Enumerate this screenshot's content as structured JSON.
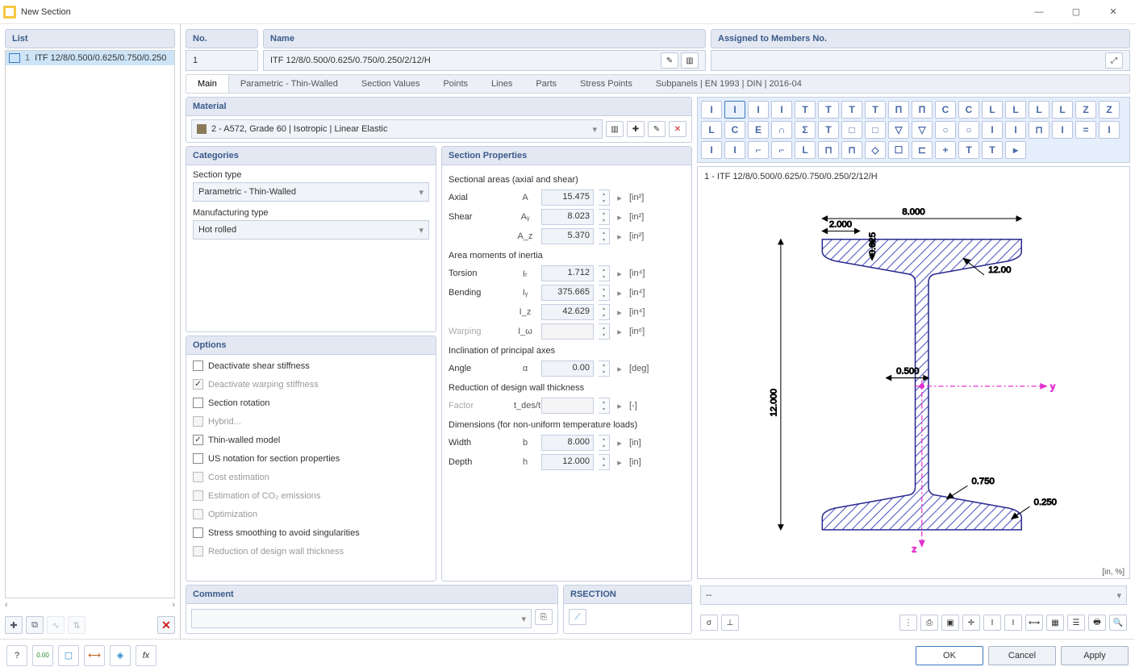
{
  "window": {
    "title": "New Section"
  },
  "list": {
    "title": "List",
    "item_num": "1",
    "item_text": "ITF 12/8/0.500/0.625/0.750/0.250"
  },
  "header": {
    "no_label": "No.",
    "no_value": "1",
    "name_label": "Name",
    "name_value": "ITF 12/8/0.500/0.625/0.750/0.250/2/12/H",
    "assigned_label": "Assigned to Members No."
  },
  "tabs": [
    "Main",
    "Parametric - Thin-Walled",
    "Section Values",
    "Points",
    "Lines",
    "Parts",
    "Stress Points",
    "Subpanels | EN 1993 | DIN | 2016-04"
  ],
  "material": {
    "title": "Material",
    "value": "2 - A572, Grade 60 | Isotropic | Linear Elastic"
  },
  "categories": {
    "title": "Categories",
    "section_type_label": "Section type",
    "section_type": "Parametric - Thin-Walled",
    "manuf_label": "Manufacturing type",
    "manuf": "Hot rolled"
  },
  "options": {
    "title": "Options",
    "items": [
      {
        "label": "Deactivate shear stiffness",
        "checked": false,
        "disabled": false
      },
      {
        "label": "Deactivate warping stiffness",
        "checked": true,
        "disabled": true
      },
      {
        "label": "Section rotation",
        "checked": false,
        "disabled": false
      },
      {
        "label": "Hybrid...",
        "checked": false,
        "disabled": true
      },
      {
        "label": "Thin-walled model",
        "checked": true,
        "disabled": false
      },
      {
        "label": "US notation for section properties",
        "checked": false,
        "disabled": false
      },
      {
        "label": "Cost estimation",
        "checked": false,
        "disabled": true
      },
      {
        "label": "Estimation of CO₂ emissions",
        "checked": false,
        "disabled": true
      },
      {
        "label": "Optimization",
        "checked": false,
        "disabled": true
      },
      {
        "label": "Stress smoothing to avoid singularities",
        "checked": false,
        "disabled": false
      },
      {
        "label": "Reduction of design wall thickness",
        "checked": false,
        "disabled": true
      }
    ]
  },
  "section_props": {
    "title": "Section Properties",
    "groups": [
      {
        "heading": "Sectional areas (axial and shear)",
        "rows": [
          {
            "lbl": "Axial",
            "sym": "A",
            "val": "15.475",
            "unit": "[in²]",
            "disabled": false
          },
          {
            "lbl": "Shear",
            "sym": "Aᵧ",
            "val": "8.023",
            "unit": "[in²]",
            "disabled": false
          },
          {
            "lbl": "",
            "sym": "A_z",
            "val": "5.370",
            "unit": "[in²]",
            "disabled": false
          }
        ]
      },
      {
        "heading": "Area moments of inertia",
        "rows": [
          {
            "lbl": "Torsion",
            "sym": "Iₜ",
            "val": "1.712",
            "unit": "[in⁴]",
            "disabled": false
          },
          {
            "lbl": "Bending",
            "sym": "Iᵧ",
            "val": "375.665",
            "unit": "[in⁴]",
            "disabled": false
          },
          {
            "lbl": "",
            "sym": "I_z",
            "val": "42.629",
            "unit": "[in⁴]",
            "disabled": false
          },
          {
            "lbl": "Warping",
            "sym": "I_ω",
            "val": "",
            "unit": "[in⁶]",
            "disabled": true
          }
        ]
      },
      {
        "heading": "Inclination of principal axes",
        "rows": [
          {
            "lbl": "Angle",
            "sym": "α",
            "val": "0.00",
            "unit": "[deg]",
            "disabled": false
          }
        ]
      },
      {
        "heading": "Reduction of design wall thickness",
        "rows": [
          {
            "lbl": "Factor",
            "sym": "t_des/t",
            "val": "",
            "unit": "[-]",
            "disabled": true
          }
        ]
      },
      {
        "heading": "Dimensions (for non-uniform temperature loads)",
        "rows": [
          {
            "lbl": "Width",
            "sym": "b",
            "val": "8.000",
            "unit": "[in]",
            "disabled": false
          },
          {
            "lbl": "Depth",
            "sym": "h",
            "val": "12.000",
            "unit": "[in]",
            "disabled": false
          }
        ]
      }
    ]
  },
  "comment": {
    "title": "Comment"
  },
  "rsection": {
    "title": "RSECTION"
  },
  "preview": {
    "title": "1 - ITF 12/8/0.500/0.625/0.750/0.250/2/12/H",
    "units": "[in, %]",
    "dims": {
      "b": "8.000",
      "bf": "2.000",
      "tf": "0.625",
      "tw": "0.500",
      "h": "12.000",
      "tf2": "0.750",
      "r": "0.250",
      "slope": "12.00"
    },
    "colors": {
      "fill": "#7a80e8",
      "stroke": "#2a2a90",
      "hatch": "#4a50c0",
      "axis": "#e030d0"
    },
    "palette_cols": 18,
    "palette_rows": 3
  },
  "footer": {
    "ok": "OK",
    "cancel": "Cancel",
    "apply": "Apply"
  }
}
